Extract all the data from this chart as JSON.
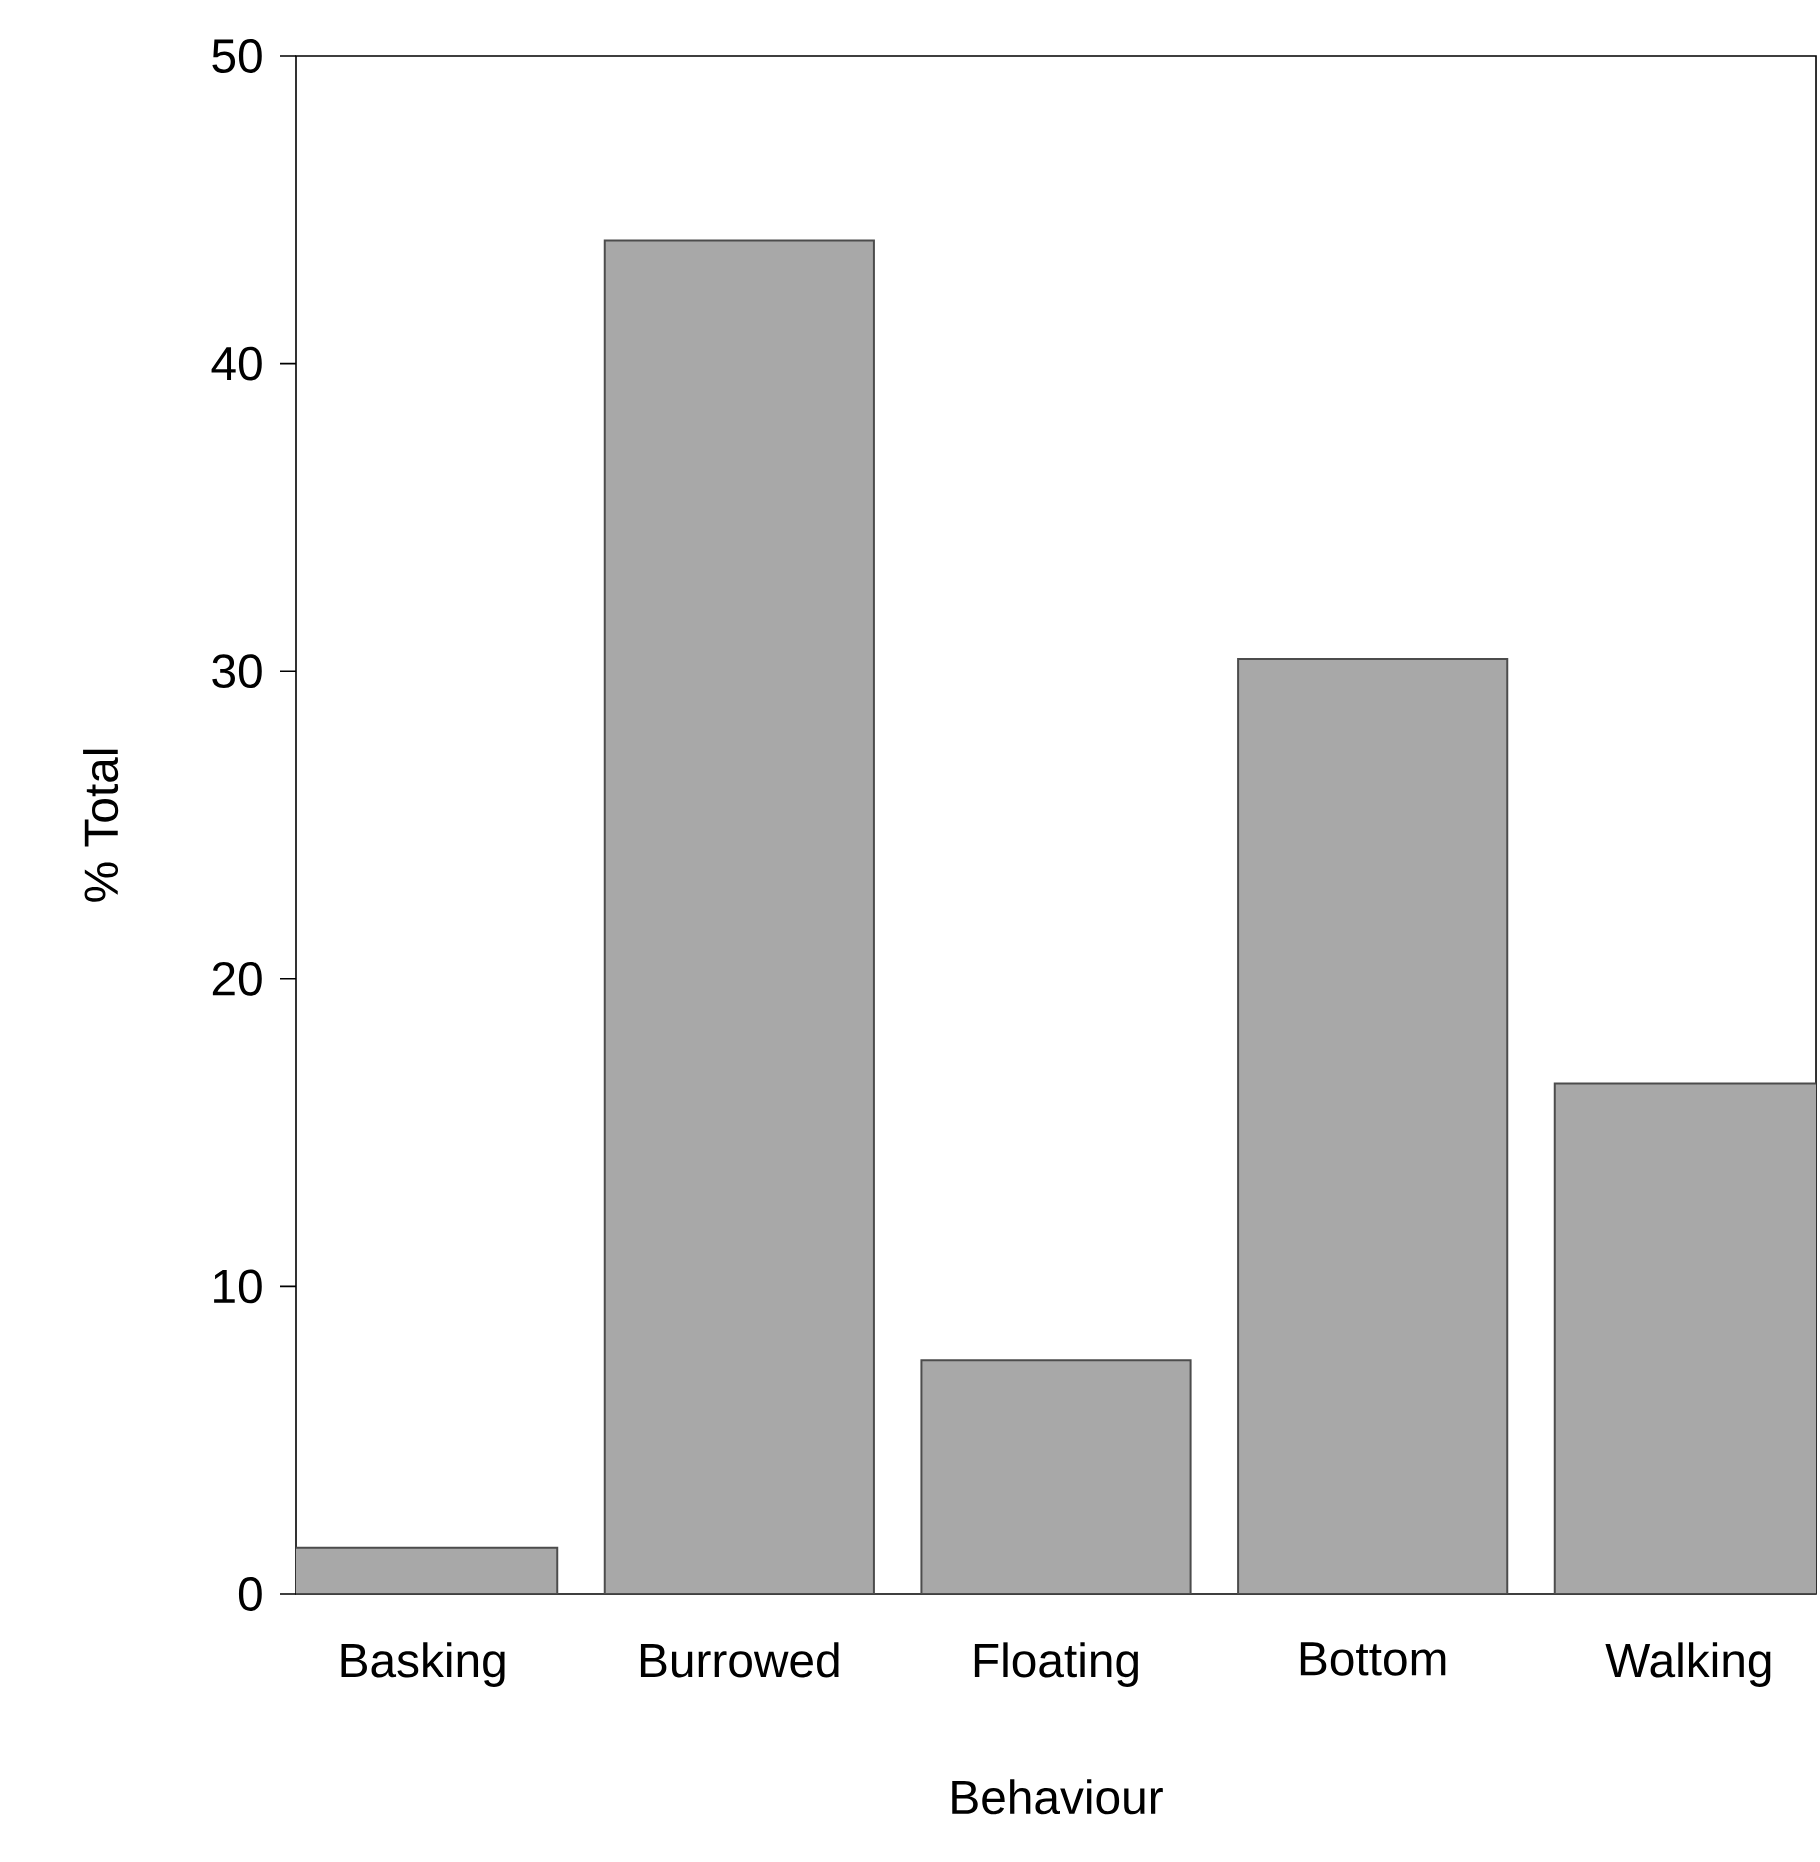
{
  "chart_data": {
    "type": "bar",
    "xlabel": "Behaviour",
    "ylabel": "% Total",
    "categories": [
      "Basking",
      "Burrowed",
      "Floating",
      "Bottom",
      "Walking"
    ],
    "values": [
      1.5,
      44.0,
      7.6,
      30.4,
      16.6
    ],
    "color": "#a8a8a8",
    "ylim": [
      0,
      50
    ],
    "yticks": [
      0,
      10,
      20,
      30,
      40,
      50
    ]
  }
}
